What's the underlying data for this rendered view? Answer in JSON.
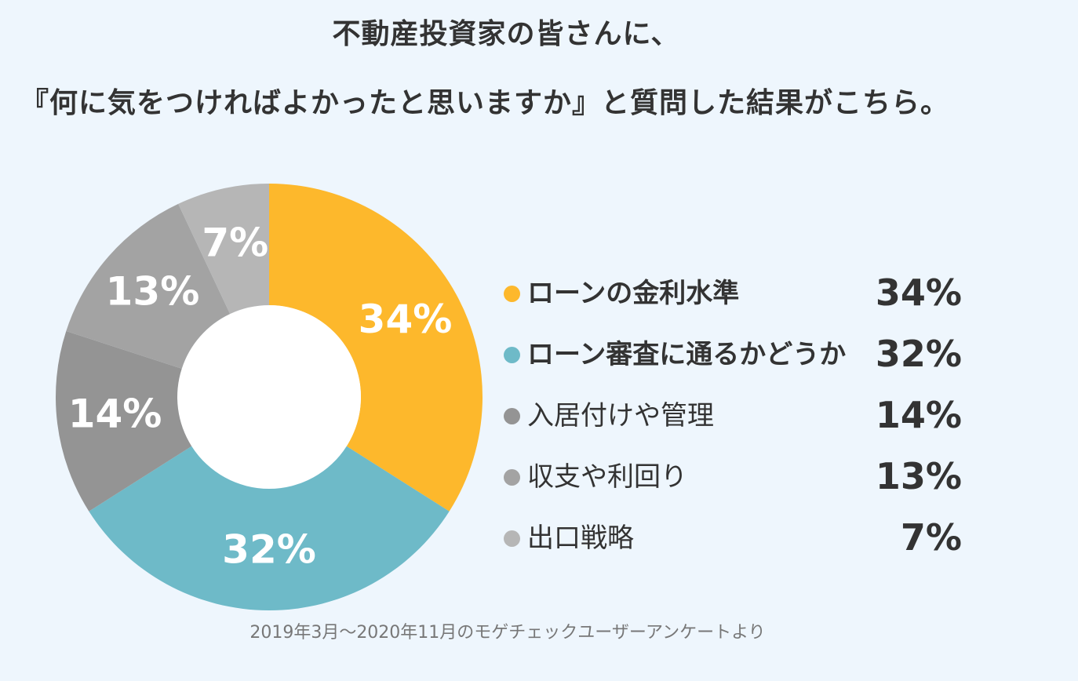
{
  "title": {
    "line1": "不動産投資家の皆さんに、",
    "line2": "『何に気をつければよかったと思いますか』と質問した結果がこちら。"
  },
  "chart_data": {
    "type": "pie",
    "variant": "donut",
    "categories": [
      "ローンの金利水準",
      "ローン審査に通るかどうか",
      "入居付けや管理",
      "収支や利回り",
      "出口戦略"
    ],
    "values": [
      34,
      32,
      14,
      13,
      7
    ],
    "value_labels": [
      "34%",
      "32%",
      "14%",
      "13%",
      "7%"
    ],
    "colors": [
      "#fdb82c",
      "#6ebac8",
      "#949494",
      "#a3a3a3",
      "#b6b6b6"
    ],
    "legend_placement": "right",
    "legend_bold": [
      true,
      true,
      false,
      false,
      false
    ]
  },
  "source": "2019年3月〜2020年11月のモゲチェックユーザーアンケートより"
}
